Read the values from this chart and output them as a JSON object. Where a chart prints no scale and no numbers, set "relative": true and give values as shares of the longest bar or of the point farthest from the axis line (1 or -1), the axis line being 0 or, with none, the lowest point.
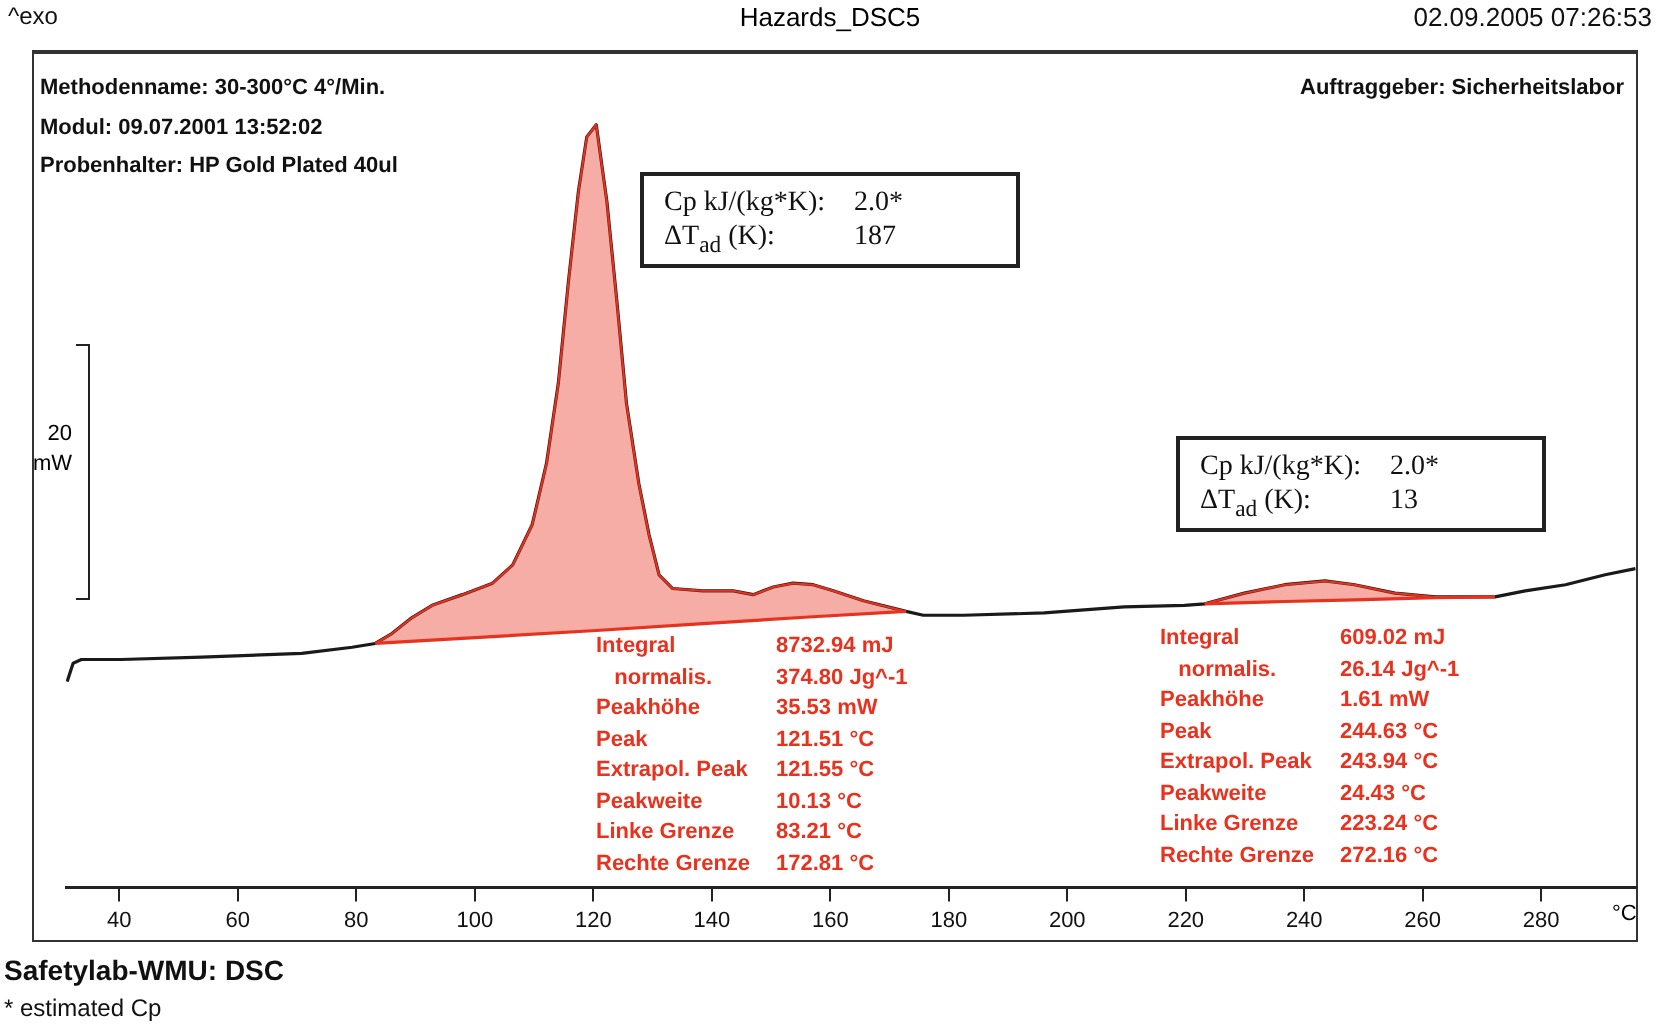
{
  "chart_data": {
    "type": "line",
    "title": "Hazards_DSC5",
    "xlabel": "°C",
    "relative": true,
    "xlim": [
      31,
      296
    ],
    "xticks": [
      40,
      60,
      80,
      100,
      120,
      140,
      160,
      180,
      200,
      220,
      240,
      260,
      280
    ],
    "series": [
      {
        "color": "#1a1a1a",
        "x": [
          31.2,
          32.2,
          33.6,
          40.3,
          53.9,
          70.8,
          79.3,
          83.2,
          86.0,
          89.4,
          92.8,
          97.9,
          103.0,
          106.4,
          109.7,
          112.1,
          114.1,
          115.8,
          117.5,
          118.9,
          120.5,
          122.3,
          124.0,
          125.6,
          127.7,
          129.4,
          131.1,
          133.4,
          138.5,
          143.6,
          147.0,
          150.4,
          153.7,
          157.1,
          160.5,
          165.6,
          172.8,
          175.7,
          182.5,
          196.1,
          209.6,
          219.8,
          223.2,
          229.9,
          236.7,
          243.5,
          248.5,
          255.3,
          262.1,
          272.2,
          277.3,
          284.1,
          290.8,
          295.9
        ],
        "values": [
          0.27,
          0.294,
          0.299,
          0.299,
          0.302,
          0.307,
          0.315,
          0.32,
          0.333,
          0.354,
          0.37,
          0.384,
          0.399,
          0.423,
          0.476,
          0.556,
          0.661,
          0.794,
          0.913,
          0.984,
          1.0,
          0.899,
          0.767,
          0.635,
          0.529,
          0.463,
          0.41,
          0.392,
          0.389,
          0.389,
          0.384,
          0.394,
          0.399,
          0.397,
          0.389,
          0.376,
          0.362,
          0.357,
          0.357,
          0.36,
          0.368,
          0.37,
          0.372,
          0.386,
          0.397,
          0.402,
          0.397,
          0.386,
          0.381,
          0.381,
          0.389,
          0.397,
          0.41,
          0.418
        ]
      },
      {
        "type": "line",
        "color": "#e8321e",
        "x": [
          83.2,
          103.0,
          120.5,
          138.5,
          157.1,
          172.8
        ],
        "values": [
          0.32,
          0.329,
          0.337,
          0.346,
          0.355,
          0.362
        ]
      },
      {
        "type": "area",
        "color": "#e8321e",
        "x": [
          83.2,
          86.0,
          89.4,
          92.8,
          97.9,
          103.0,
          106.4,
          109.7,
          112.1,
          114.1,
          115.8,
          117.5,
          118.9,
          120.5,
          122.3,
          124.0,
          125.6,
          127.7,
          129.4,
          131.1,
          133.4,
          138.5,
          143.6,
          147.0,
          150.4,
          153.7,
          157.1,
          160.5,
          165.6,
          172.8
        ],
        "values": [
          0.32,
          0.333,
          0.354,
          0.37,
          0.384,
          0.399,
          0.423,
          0.476,
          0.556,
          0.661,
          0.794,
          0.913,
          0.984,
          1.0,
          0.899,
          0.767,
          0.635,
          0.529,
          0.463,
          0.41,
          0.392,
          0.389,
          0.389,
          0.384,
          0.394,
          0.399,
          0.397,
          0.389,
          0.376,
          0.362
        ]
      },
      {
        "type": "line",
        "color": "#e8321e",
        "x": [
          223.2,
          236.7,
          248.5,
          262.1,
          272.2
        ],
        "values": [
          0.372,
          0.375,
          0.377,
          0.38,
          0.381
        ]
      },
      {
        "type": "area",
        "color": "#e8321e",
        "x": [
          223.2,
          229.9,
          236.7,
          243.5,
          248.5,
          255.3,
          262.1,
          272.2
        ],
        "values": [
          0.372,
          0.386,
          0.397,
          0.402,
          0.397,
          0.386,
          0.381,
          0.381
        ]
      }
    ],
    "annotations": [
      "^exo",
      "02.09.2005 07:26:53",
      "Methodenname: 30-300°C 4°/Min.",
      "Modul: 09.07.2001 13:52:02",
      "Probenhalter: HP Gold Plated 40ul",
      "Auftraggeber: Sicherheitslabor",
      "Cp kJ/(kg*K):\t2.0*\nΔT$_{ad}$ (K):\t187",
      "Cp kJ/(kg*K):\t2.0*\nΔT$_{ad}$ (K):\t13",
      "Integral\t8732.94 mJ\n   normalis.\t374.80 Jg^-1\nPeakhöhe\t35.53 mW\nPeak\t121.51 °C\nExtrapol. Peak\t121.55 °C\nPeakweite\t10.13 °C\nLinke Grenze\t83.21 °C\nRechte Grenze\t172.81 °C",
      "Integral\t609.02 mJ\n   normalis.\t26.14 Jg^-1\nPeakhöhe\t1.61 mW\nPeak\t244.63 °C\nExtrapol. Peak\t243.94 °C\nPeakweite\t24.43 °C\nLinke Grenze\t223.24 °C\nRechte Grenze\t272.16 °C",
      "20\nmW",
      "Safetylab-WMU: DSC",
      "* estimated Cp"
    ]
  }
}
